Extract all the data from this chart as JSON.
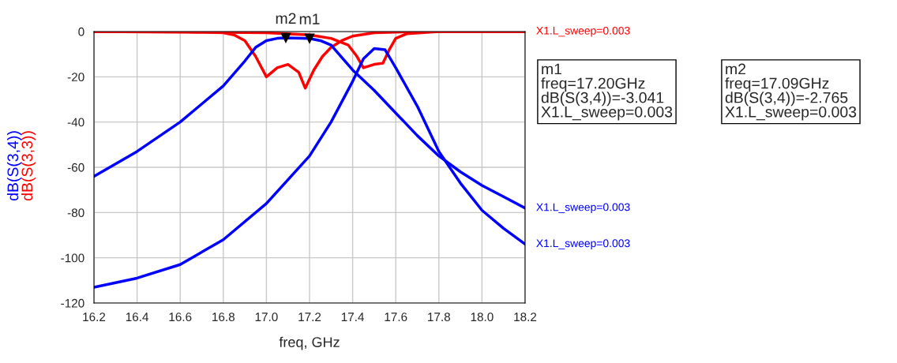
{
  "chart_data": {
    "type": "line",
    "xlabel": "freq, GHz",
    "ylabel": "dB(S(3,4))",
    "y2label": "dB(S(3,3))",
    "xlim": [
      16.2,
      18.2
    ],
    "ylim": [
      -120,
      0
    ],
    "xticks": [
      16.2,
      16.4,
      16.6,
      16.8,
      {
        "value": 17.0,
        "label": "17.0"
      },
      17.2,
      17.4,
      17.6,
      17.8,
      {
        "value": 18.0,
        "label": "18.0"
      },
      18.2
    ],
    "yticks": [
      -120,
      -100,
      -80,
      -60,
      -40,
      -20,
      0
    ],
    "grid": true,
    "legend": false,
    "marker": "none",
    "line_style": "solid",
    "series": [
      {
        "name": "X1.L_sweep=0.003",
        "color": "#ff0000",
        "x": [
          16.2,
          16.6,
          16.8,
          16.85,
          16.9,
          16.95,
          17.0,
          17.05,
          17.1,
          17.15,
          17.18,
          17.22,
          17.26,
          17.3,
          17.35,
          17.4,
          17.5,
          17.7,
          18.2
        ],
        "values": [
          0,
          0,
          -0.5,
          -1.5,
          -4,
          -11,
          -20,
          -16,
          -14.5,
          -18,
          -25,
          -17,
          -11,
          -7,
          -4,
          -2,
          -0.5,
          0,
          0
        ]
      },
      {
        "color": "#ff0000",
        "x": [
          16.2,
          17.0,
          17.2,
          17.3,
          17.38,
          17.42,
          17.45,
          17.5,
          17.54,
          17.57,
          17.6,
          17.65,
          17.8,
          18.2
        ],
        "values": [
          0,
          -0.5,
          -1.5,
          -3,
          -6,
          -11,
          -16,
          -14.5,
          -14,
          -8,
          -3,
          -1,
          0,
          0
        ]
      },
      {
        "name": "X1.L_sweep=0.003",
        "color": "#0000ff",
        "x": [
          16.2,
          16.4,
          16.6,
          16.7,
          16.8,
          16.9,
          16.95,
          17.0,
          17.05,
          17.09,
          17.2,
          17.25,
          17.3,
          17.4,
          17.5,
          17.6,
          17.7,
          17.8,
          17.9,
          18.0,
          18.1,
          18.2
        ],
        "values": [
          -64,
          -53,
          -40,
          -32,
          -24,
          -13,
          -7,
          -4,
          -3,
          -2.765,
          -3.041,
          -4,
          -6,
          -17,
          -26,
          -36,
          -46,
          -55,
          -62,
          -68,
          -73,
          -78
        ]
      },
      {
        "name": "X1.L_sweep=0.003",
        "color": "#0000ff",
        "x": [
          16.2,
          16.4,
          16.6,
          16.8,
          17.0,
          17.2,
          17.3,
          17.4,
          17.45,
          17.5,
          17.55,
          17.6,
          17.7,
          17.8,
          17.9,
          18.0,
          18.1,
          18.2
        ],
        "values": [
          -113,
          -109,
          -103,
          -92,
          -76,
          -55,
          -40,
          -22,
          -12,
          -7.5,
          -8,
          -16,
          -33,
          -53,
          -67,
          -79,
          -87,
          -94
        ]
      }
    ],
    "annotations": [
      {
        "text": "m1",
        "x": 17.2,
        "y": -3.041
      },
      {
        "text": "m2",
        "x": 17.09,
        "y": -2.765
      },
      "m1\nfreq=17.20GHz\ndB(S(3,4))=-3.041\nX1.L_sweep=0.003",
      "m2\nfreq=17.09GHz\ndB(S(3,4))=-2.765\nX1.L_sweep=0.003"
    ]
  }
}
